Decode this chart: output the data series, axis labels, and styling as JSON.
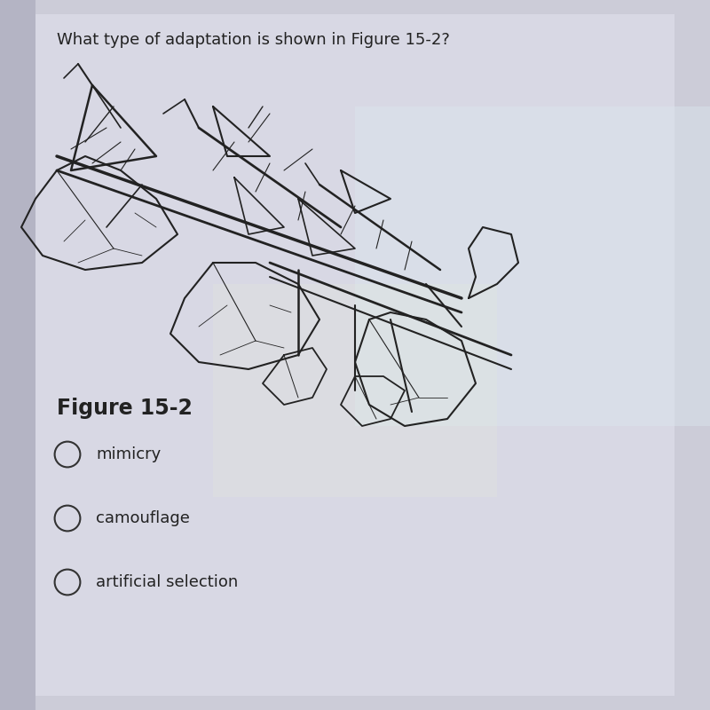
{
  "question": "What type of adaptation is shown in Figure 15-2?",
  "figure_label": "Figure 15-2",
  "options": [
    "mimicry",
    "camouflage",
    "artificial selection"
  ],
  "bg_color": "#d8d8e4",
  "text_color": "#222222",
  "question_fontsize": 13,
  "figure_label_fontsize": 17,
  "option_fontsize": 13,
  "draw_color": "#222222",
  "left_bar_color": "#aaaabc",
  "highlight_color1": "#dce8f0",
  "highlight_color2": "#e8f0d8"
}
